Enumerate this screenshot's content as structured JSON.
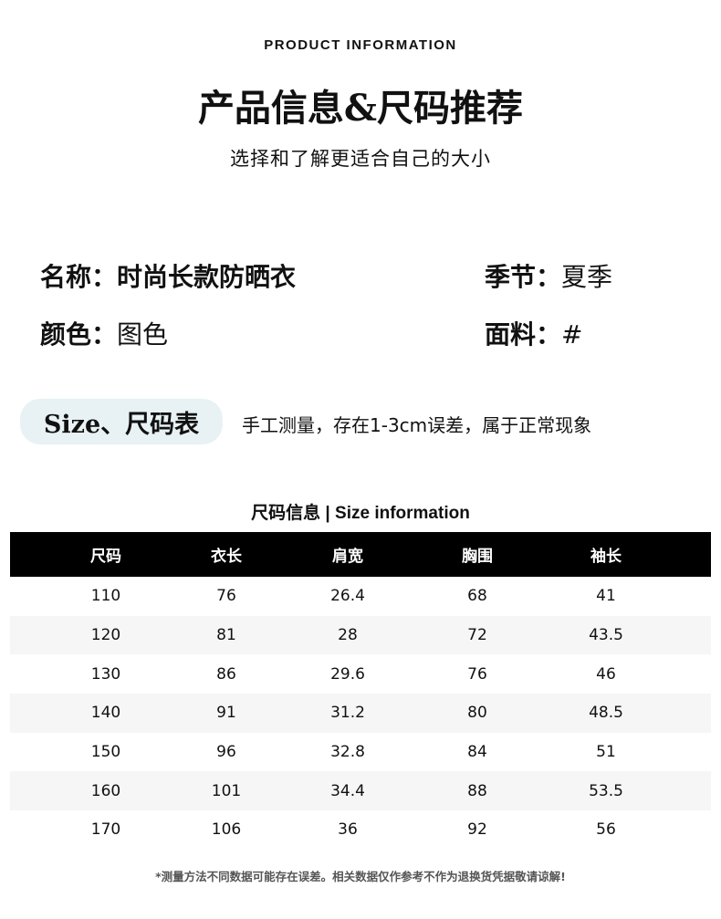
{
  "header": {
    "eyebrow": "PRODUCT INFORMATION",
    "title": "产品信息&尺码推荐",
    "subtitle": "选择和了解更适合自己的大小"
  },
  "info": {
    "name_label": "名称：",
    "name_value": "时尚长款防晒衣",
    "season_label": "季节：",
    "season_value": "夏季",
    "color_label": "颜色：",
    "color_value": "图色",
    "fabric_label": "面料：",
    "fabric_value": "#"
  },
  "size_section": {
    "pill": "Size、尺码表",
    "note": "手工测量，存在1-3cm误差，属于正常现象",
    "pill_color": "#e8f2f5"
  },
  "table": {
    "title": "尺码信息 | Size information",
    "headers": [
      "尺码",
      "衣长",
      "肩宽",
      "胸围",
      "袖长"
    ],
    "rows": [
      [
        "110",
        "76",
        "26.4",
        "68",
        "41"
      ],
      [
        "120",
        "81",
        "28",
        "72",
        "43.5"
      ],
      [
        "130",
        "86",
        "29.6",
        "76",
        "46"
      ],
      [
        "140",
        "91",
        "31.2",
        "80",
        "48.5"
      ],
      [
        "150",
        "96",
        "32.8",
        "84",
        "51"
      ],
      [
        "160",
        "101",
        "34.4",
        "88",
        "53.5"
      ],
      [
        "170",
        "106",
        "36",
        "92",
        "56"
      ]
    ]
  },
  "footer_note": "*测量方法不同数据可能存在误差。相关数据仅作参考不作为退换货凭据敬请谅解!"
}
